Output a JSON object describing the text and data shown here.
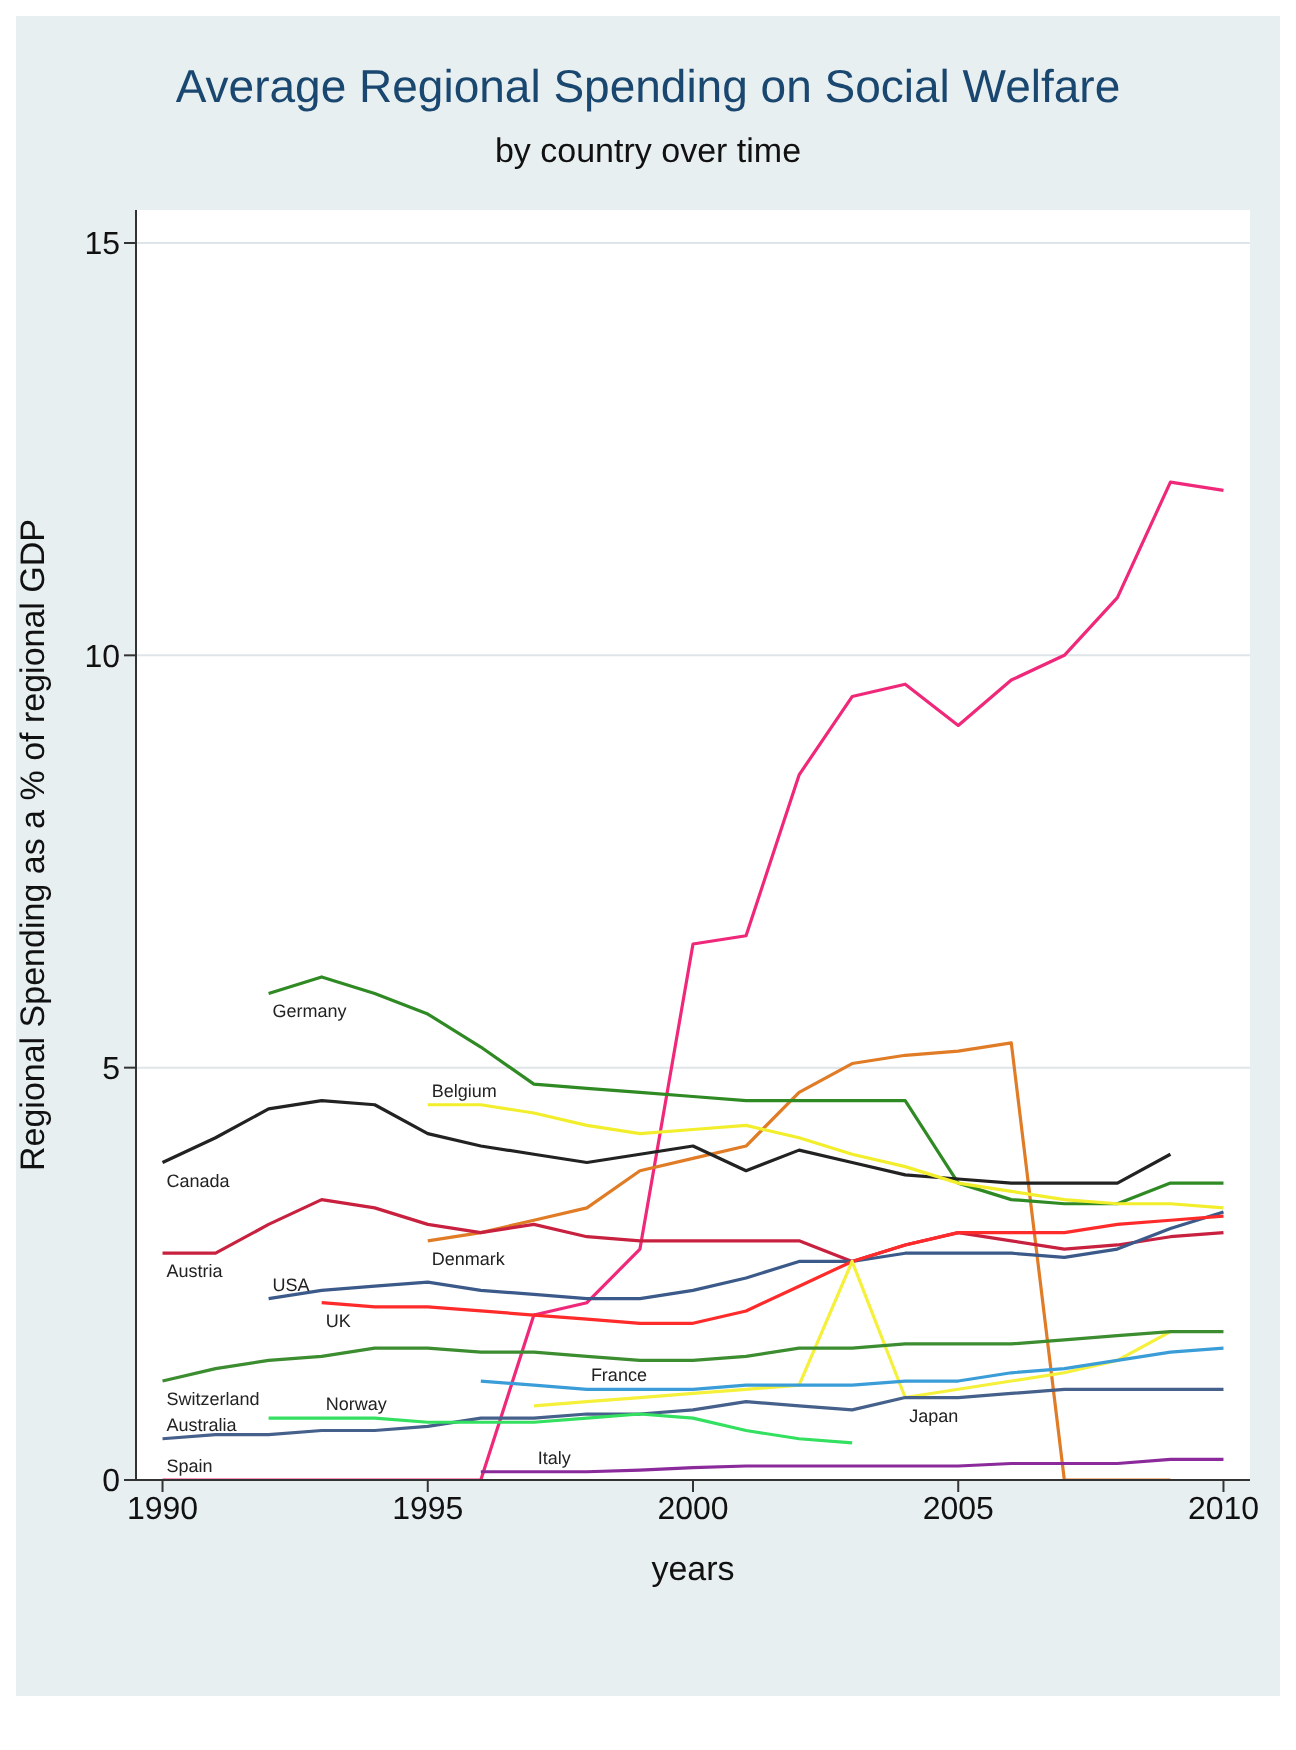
{
  "chart_data": {
    "type": "line",
    "title": "Average Regional Spending on Social Welfare",
    "subtitle": "by country over time",
    "xlabel": "years",
    "ylabel": "Regional Spending as a % of regional GDP",
    "x": [
      1990,
      1991,
      1992,
      1993,
      1994,
      1995,
      1996,
      1997,
      1998,
      1999,
      2000,
      2001,
      2002,
      2003,
      2004,
      2005,
      2006,
      2007,
      2008,
      2009,
      2010
    ],
    "xlim": [
      1989.5,
      2010.5
    ],
    "xticks": [
      1990,
      1995,
      2000,
      2005,
      2010
    ],
    "ylim": [
      0,
      15.4
    ],
    "yticks": [
      0,
      5,
      10,
      15
    ],
    "grid": "y",
    "legend": false,
    "marker": "none",
    "line_style": "solid",
    "series": [
      {
        "name": "Spain",
        "color": "#f0287a",
        "values": [
          0,
          0,
          0,
          0,
          0,
          0,
          0,
          2.0,
          2.15,
          2.8,
          6.5,
          6.6,
          8.55,
          9.5,
          9.65,
          9.15,
          9.7,
          10.0,
          10.7,
          12.1,
          12.0
        ]
      },
      {
        "name": "Denmark",
        "color": "#e07b26",
        "values": [
          null,
          null,
          null,
          null,
          null,
          2.9,
          3.0,
          3.15,
          3.3,
          3.75,
          3.9,
          4.05,
          4.7,
          5.05,
          5.15,
          5.2,
          5.3,
          0,
          0,
          0,
          null
        ]
      },
      {
        "name": "Germany",
        "color": "#2f8a24",
        "values": [
          null,
          null,
          5.9,
          6.1,
          5.9,
          5.65,
          5.25,
          4.8,
          4.75,
          4.7,
          4.65,
          4.6,
          4.6,
          4.6,
          4.6,
          3.6,
          3.4,
          3.35,
          3.35,
          3.6,
          3.6
        ]
      },
      {
        "name": "Canada",
        "color": "#222222",
        "values": [
          3.85,
          4.15,
          4.5,
          4.6,
          4.55,
          4.2,
          4.05,
          3.95,
          3.85,
          3.95,
          4.05,
          3.75,
          4.0,
          3.85,
          3.7,
          3.65,
          3.6,
          3.6,
          3.6,
          3.95,
          null
        ]
      },
      {
        "name": "Belgium",
        "color": "#f2ee2c",
        "values": [
          null,
          null,
          null,
          null,
          null,
          4.55,
          4.55,
          4.45,
          4.3,
          4.2,
          4.25,
          4.3,
          4.15,
          3.95,
          3.8,
          3.6,
          3.5,
          3.4,
          3.35,
          3.35,
          3.3
        ]
      },
      {
        "name": "Austria",
        "color": "#c8203f",
        "values": [
          2.75,
          2.75,
          3.1,
          3.4,
          3.3,
          3.1,
          3.0,
          3.1,
          2.95,
          2.9,
          2.9,
          2.9,
          2.9,
          2.65,
          2.85,
          3.0,
          2.9,
          2.8,
          2.85,
          2.95,
          3.0
        ]
      },
      {
        "name": "USA",
        "color": "#3b5a8a",
        "values": [
          null,
          null,
          2.2,
          2.3,
          2.35,
          2.4,
          2.3,
          2.25,
          2.2,
          2.2,
          2.3,
          2.45,
          2.65,
          2.65,
          2.75,
          2.75,
          2.75,
          2.7,
          2.8,
          3.05,
          3.25
        ]
      },
      {
        "name": "UK",
        "color": "#ff2a2a",
        "values": [
          null,
          null,
          null,
          2.15,
          2.1,
          2.1,
          2.05,
          2.0,
          1.95,
          1.9,
          1.9,
          2.05,
          2.35,
          2.65,
          2.85,
          3.0,
          3.0,
          3.0,
          3.1,
          3.15,
          3.2
        ]
      },
      {
        "name": "Japan",
        "color": "#f5f03a",
        "values": [
          null,
          null,
          null,
          null,
          null,
          null,
          null,
          0.9,
          0.95,
          1.0,
          1.05,
          1.1,
          1.15,
          2.65,
          1.0,
          1.1,
          1.2,
          1.3,
          1.45,
          1.8,
          null
        ]
      },
      {
        "name": "Switzerland",
        "color": "#3c8c30",
        "values": [
          1.2,
          1.35,
          1.45,
          1.5,
          1.6,
          1.6,
          1.55,
          1.55,
          1.5,
          1.45,
          1.45,
          1.5,
          1.6,
          1.6,
          1.65,
          1.65,
          1.65,
          1.7,
          1.75,
          1.8,
          1.8
        ]
      },
      {
        "name": "France",
        "color": "#3a9dd8",
        "values": [
          null,
          null,
          null,
          null,
          null,
          null,
          1.2,
          1.15,
          1.1,
          1.1,
          1.1,
          1.15,
          1.15,
          1.15,
          1.2,
          1.2,
          1.3,
          1.35,
          1.45,
          1.55,
          1.6
        ]
      },
      {
        "name": "Australia",
        "color": "#45608a",
        "values": [
          0.5,
          0.55,
          0.55,
          0.6,
          0.6,
          0.65,
          0.75,
          0.75,
          0.8,
          0.8,
          0.85,
          0.95,
          0.9,
          0.85,
          1.0,
          1.0,
          1.05,
          1.1,
          1.1,
          1.1,
          1.1
        ]
      },
      {
        "name": "Norway",
        "color": "#33e060",
        "values": [
          null,
          null,
          0.75,
          0.75,
          0.75,
          0.7,
          0.7,
          0.7,
          0.75,
          0.8,
          0.75,
          0.6,
          0.5,
          0.45,
          null,
          null,
          null,
          null,
          null,
          null,
          null
        ]
      },
      {
        "name": "Italy",
        "color": "#8b2a9a",
        "values": [
          null,
          null,
          null,
          null,
          null,
          null,
          0.1,
          0.1,
          0.1,
          0.12,
          0.15,
          0.17,
          0.17,
          0.17,
          0.17,
          0.17,
          0.2,
          0.2,
          0.2,
          0.25,
          0.25
        ]
      }
    ]
  }
}
